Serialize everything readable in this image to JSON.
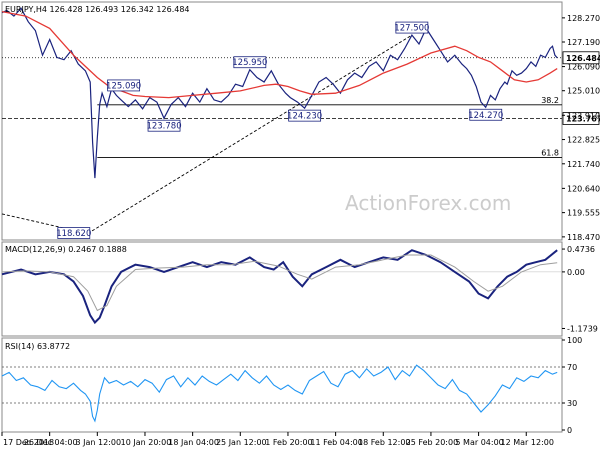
{
  "watermark": "ActionForex.com",
  "chart_data": [
    {
      "type": "line",
      "title": "EURJPY,H4  126.428 126.493 126.342 126.484",
      "y_ticks": [
        118.47,
        119.555,
        120.64,
        121.74,
        122.825,
        123.91,
        125.01,
        126.09,
        127.19,
        128.27
      ],
      "y_tick_labels": [
        "118.470",
        "119.555",
        "120.640",
        "121.740",
        "122.825",
        "123.910",
        "125.010",
        "126.090",
        "127.190",
        "128.270"
      ],
      "ylim": [
        118.33,
        128.98
      ],
      "x_ticks": [
        0,
        20,
        40,
        60,
        80,
        100,
        120,
        140,
        160,
        180,
        200,
        220
      ],
      "x_tick_labels": [
        "17 Dec 2018",
        "26 Dec 04:00",
        "3 Jan 12:00",
        "10 Jan 20:00",
        "18 Jan 04:00",
        "25 Jan 12:00",
        "1 Feb 20:00",
        "11 Feb 04:00",
        "18 Feb 12:00",
        "25 Feb 20:00",
        "5 Mar 04:00",
        "12 Mar 12:00"
      ],
      "xlim": [
        0,
        235
      ],
      "series": [
        {
          "kind": "price",
          "color": "#1a237e",
          "x": [
            0,
            2,
            5,
            8,
            11,
            14,
            17,
            20,
            23,
            26,
            29,
            32,
            35,
            37,
            38,
            39,
            40,
            41,
            42,
            44,
            46,
            48,
            50,
            53,
            56,
            59,
            62,
            65,
            68,
            71,
            74,
            77,
            80,
            83,
            86,
            89,
            92,
            95,
            98,
            101,
            104,
            107,
            110,
            113,
            116,
            119,
            121,
            124,
            127,
            130,
            133,
            136,
            139,
            142,
            145,
            148,
            151,
            154,
            157,
            160,
            163,
            166,
            169,
            172,
            175,
            178,
            181,
            184,
            187,
            190,
            193,
            195,
            197,
            199,
            201,
            203,
            205,
            207,
            209,
            211,
            212,
            214,
            216,
            218,
            220,
            222,
            224,
            226,
            228,
            230,
            231,
            232,
            233
          ],
          "values": [
            128.5,
            128.6,
            128.35,
            128.7,
            128.1,
            127.7,
            126.6,
            127.3,
            126.5,
            126.4,
            126.8,
            126.2,
            125.9,
            125.4,
            122.7,
            121.1,
            122.9,
            124.4,
            124.9,
            124.3,
            125.09,
            124.8,
            124.6,
            124.3,
            124.6,
            124.2,
            124.7,
            124.5,
            123.78,
            124.4,
            124.7,
            124.3,
            124.9,
            124.5,
            125.1,
            124.6,
            124.5,
            124.8,
            125.3,
            125.2,
            125.95,
            125.6,
            125.4,
            125.9,
            125.3,
            124.9,
            124.7,
            124.5,
            124.23,
            124.8,
            125.4,
            125.6,
            125.3,
            124.9,
            125.5,
            125.8,
            125.6,
            126.1,
            126.3,
            125.9,
            126.6,
            126.4,
            126.9,
            127.5,
            127.1,
            127.8,
            127.3,
            126.8,
            126.3,
            126.6,
            126.2,
            126.0,
            125.7,
            125.2,
            124.5,
            124.27,
            124.8,
            124.6,
            125.1,
            125.4,
            125.3,
            125.9,
            125.7,
            125.8,
            126.0,
            126.3,
            126.1,
            126.6,
            126.5,
            126.9,
            127.0,
            126.6,
            126.484
          ]
        },
        {
          "kind": "moving-average",
          "color": "#e53935",
          "x": [
            0,
            10,
            20,
            25,
            30,
            35,
            40,
            45,
            50,
            55,
            60,
            70,
            80,
            90,
            100,
            110,
            115,
            120,
            125,
            130,
            140,
            150,
            160,
            170,
            180,
            190,
            195,
            200,
            205,
            210,
            215,
            220,
            225,
            230,
            233
          ],
          "values": [
            128.55,
            128.35,
            127.8,
            127.2,
            126.6,
            126.1,
            125.6,
            125.2,
            125.0,
            124.8,
            124.75,
            124.7,
            124.8,
            124.9,
            125.0,
            125.25,
            125.3,
            125.2,
            125.0,
            124.85,
            124.9,
            125.25,
            125.8,
            126.2,
            126.7,
            127.0,
            126.8,
            126.5,
            126.3,
            125.9,
            125.5,
            125.4,
            125.5,
            125.8,
            126.0
          ]
        }
      ],
      "annotations": [
        {
          "text": "118.620",
          "x": 36,
          "y": 118.62
        },
        {
          "text": "125.090",
          "x": 46,
          "y": 125.09
        },
        {
          "text": "123.780",
          "x": 68,
          "y": 123.78
        },
        {
          "text": "125.950",
          "x": 104,
          "y": 125.95
        },
        {
          "text": "124.230",
          "x": 127,
          "y": 124.23
        },
        {
          "text": "127.500",
          "x": 172,
          "y": 127.5
        },
        {
          "text": "124.270",
          "x": 203,
          "y": 124.27
        }
      ],
      "level_lines": [
        {
          "value": 126.484,
          "label": "126.484",
          "boxed": true
        },
        {
          "value": 123.767,
          "label": "123.767",
          "boxed": true
        }
      ],
      "fib_levels": [
        {
          "label": "38.2",
          "value": 124.38
        },
        {
          "label": "61.8",
          "value": 122.02
        }
      ],
      "trendlines": [
        {
          "x": [
            0,
            36
          ],
          "values": [
            119.5,
            118.62
          ]
        },
        {
          "x": [
            36,
            172
          ],
          "values": [
            118.62,
            127.5
          ]
        }
      ]
    },
    {
      "type": "line",
      "title": "MACD(12,26,9) 0.2467 0.1888",
      "y_ticks": [
        0.4736,
        0.0,
        -1.1739
      ],
      "y_tick_labels": [
        "0.4736",
        "0.00",
        "-1.1739"
      ],
      "ylim": [
        -1.33,
        0.62
      ],
      "xlim": [
        0,
        235
      ],
      "series": [
        {
          "kind": "macd",
          "color": "#1a237e",
          "x": [
            0,
            8,
            14,
            20,
            26,
            30,
            34,
            37,
            39,
            41,
            43,
            46,
            50,
            56,
            62,
            68,
            74,
            80,
            86,
            92,
            98,
            104,
            110,
            114,
            118,
            122,
            126,
            130,
            136,
            142,
            148,
            154,
            160,
            166,
            172,
            178,
            184,
            190,
            196,
            200,
            204,
            208,
            212,
            216,
            220,
            224,
            228,
            233
          ],
          "values": [
            -0.05,
            0.05,
            -0.05,
            0.0,
            -0.05,
            -0.2,
            -0.5,
            -0.9,
            -1.05,
            -0.95,
            -0.7,
            -0.3,
            0.0,
            0.15,
            0.1,
            0.0,
            0.1,
            0.2,
            0.1,
            0.2,
            0.15,
            0.3,
            0.1,
            0.05,
            0.2,
            -0.1,
            -0.3,
            -0.05,
            0.1,
            0.25,
            0.1,
            0.2,
            0.3,
            0.25,
            0.45,
            0.35,
            0.2,
            0.0,
            -0.2,
            -0.45,
            -0.55,
            -0.3,
            -0.1,
            0.0,
            0.15,
            0.2,
            0.25,
            0.45
          ]
        },
        {
          "kind": "signal",
          "color": "#9e9e9e",
          "x": [
            0,
            10,
            20,
            30,
            36,
            40,
            44,
            48,
            56,
            66,
            76,
            86,
            96,
            106,
            116,
            124,
            130,
            140,
            150,
            160,
            170,
            180,
            190,
            198,
            204,
            210,
            218,
            226,
            233
          ],
          "values": [
            0.0,
            0.02,
            0.0,
            -0.1,
            -0.4,
            -0.8,
            -0.7,
            -0.3,
            0.05,
            0.08,
            0.1,
            0.15,
            0.15,
            0.22,
            0.12,
            -0.05,
            -0.15,
            0.1,
            0.15,
            0.25,
            0.35,
            0.35,
            0.1,
            -0.2,
            -0.4,
            -0.3,
            0.0,
            0.15,
            0.19
          ]
        }
      ]
    },
    {
      "type": "line",
      "title": "RSI(14) 63.8772",
      "y_ticks": [
        100,
        70,
        30,
        0
      ],
      "y_tick_labels": [
        "100",
        "70",
        "30",
        "0"
      ],
      "ylim": [
        0,
        100
      ],
      "dashed_levels": [
        70,
        30
      ],
      "xlim": [
        0,
        235
      ],
      "series": [
        {
          "kind": "rsi",
          "color": "#2196f3",
          "x": [
            0,
            3,
            6,
            9,
            12,
            15,
            18,
            21,
            24,
            27,
            30,
            33,
            35,
            37,
            38,
            39,
            40,
            41,
            43,
            45,
            48,
            51,
            54,
            57,
            60,
            63,
            66,
            69,
            72,
            75,
            78,
            81,
            84,
            87,
            90,
            93,
            96,
            99,
            102,
            105,
            108,
            111,
            114,
            117,
            120,
            123,
            126,
            129,
            132,
            135,
            138,
            141,
            144,
            147,
            150,
            153,
            156,
            159,
            162,
            165,
            168,
            171,
            174,
            177,
            180,
            183,
            186,
            189,
            192,
            195,
            198,
            201,
            204,
            207,
            210,
            213,
            216,
            219,
            222,
            225,
            228,
            231,
            233
          ],
          "values": [
            60,
            64,
            55,
            58,
            50,
            48,
            44,
            55,
            48,
            46,
            52,
            44,
            40,
            32,
            15,
            10,
            22,
            40,
            58,
            52,
            55,
            50,
            54,
            48,
            56,
            52,
            42,
            56,
            60,
            48,
            58,
            50,
            60,
            54,
            50,
            56,
            62,
            55,
            66,
            58,
            52,
            60,
            50,
            45,
            50,
            44,
            40,
            55,
            60,
            65,
            52,
            48,
            62,
            66,
            58,
            68,
            60,
            64,
            70,
            56,
            66,
            60,
            72,
            66,
            58,
            50,
            46,
            56,
            44,
            40,
            30,
            20,
            28,
            38,
            50,
            46,
            58,
            54,
            60,
            58,
            66,
            62,
            64
          ]
        }
      ]
    }
  ]
}
